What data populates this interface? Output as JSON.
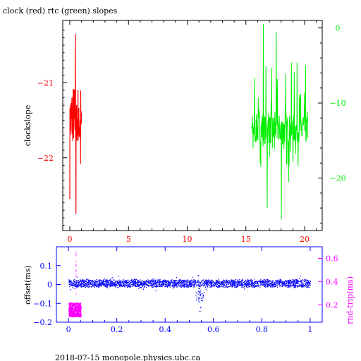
{
  "title": "clock (red) rtc (green) slopes",
  "footer": "2018-07-15  monopole.physics.ubc.ca",
  "colors": {
    "red": "#ff0000",
    "green": "#00ee00",
    "blue": "#0000ff",
    "magenta": "#ff00ff",
    "black": "#000000"
  },
  "chart_data": [
    {
      "type": "line",
      "ylabel": "clockslope",
      "xlim": [
        -0.6,
        21.5
      ],
      "x_ticks": [
        0,
        5,
        10,
        15,
        20
      ],
      "left_axis": {
        "lim": [
          -22.97,
          -20.17
        ],
        "ticks": [
          -21,
          -22
        ],
        "color": "#ff0000"
      },
      "right_axis": {
        "lim": [
          -27,
          1
        ],
        "ticks": [
          0,
          -10,
          -20
        ],
        "color": "#00ee00"
      },
      "series": [
        {
          "color": "#ff0000",
          "axis": "left",
          "x_range": [
            0,
            1
          ],
          "y_center": -21.55,
          "y_extent": [
            -22.75,
            -20.35
          ]
        },
        {
          "color": "#00ee00",
          "axis": "right",
          "x_range": [
            15.5,
            20.3
          ],
          "y_center": -13.5,
          "y_extent": [
            -25.5,
            0.5
          ]
        }
      ],
      "grid": false
    },
    {
      "type": "scatter",
      "ylabel": "offset(ms)",
      "xlim": [
        -0.05,
        1.05
      ],
      "x_ticks": [
        "0",
        "0.2",
        "0.4",
        "0.6",
        "0.8",
        "1"
      ],
      "left_axis": {
        "lim": [
          -0.2,
          0.2
        ],
        "ticks": [
          "0.1",
          "0",
          "-0.1",
          "-0.2"
        ],
        "color": "#0000ff"
      },
      "right_axis": {
        "label": "rnd-trip(ms)",
        "lim": [
          0.05,
          0.7
        ],
        "ticks": [
          "0.2",
          "0.4",
          "0.6"
        ],
        "color": "#ff00ff"
      },
      "series": [
        {
          "color": "#0000ff",
          "axis": "left",
          "x_range": [
            0,
            1
          ],
          "y_band": [
            -0.01,
            0.025
          ]
        },
        {
          "color": "#ff00ff",
          "axis": "right",
          "x_range": [
            0,
            0.05
          ],
          "y_band": [
            0.1,
            0.22
          ]
        }
      ],
      "grid": false
    }
  ]
}
